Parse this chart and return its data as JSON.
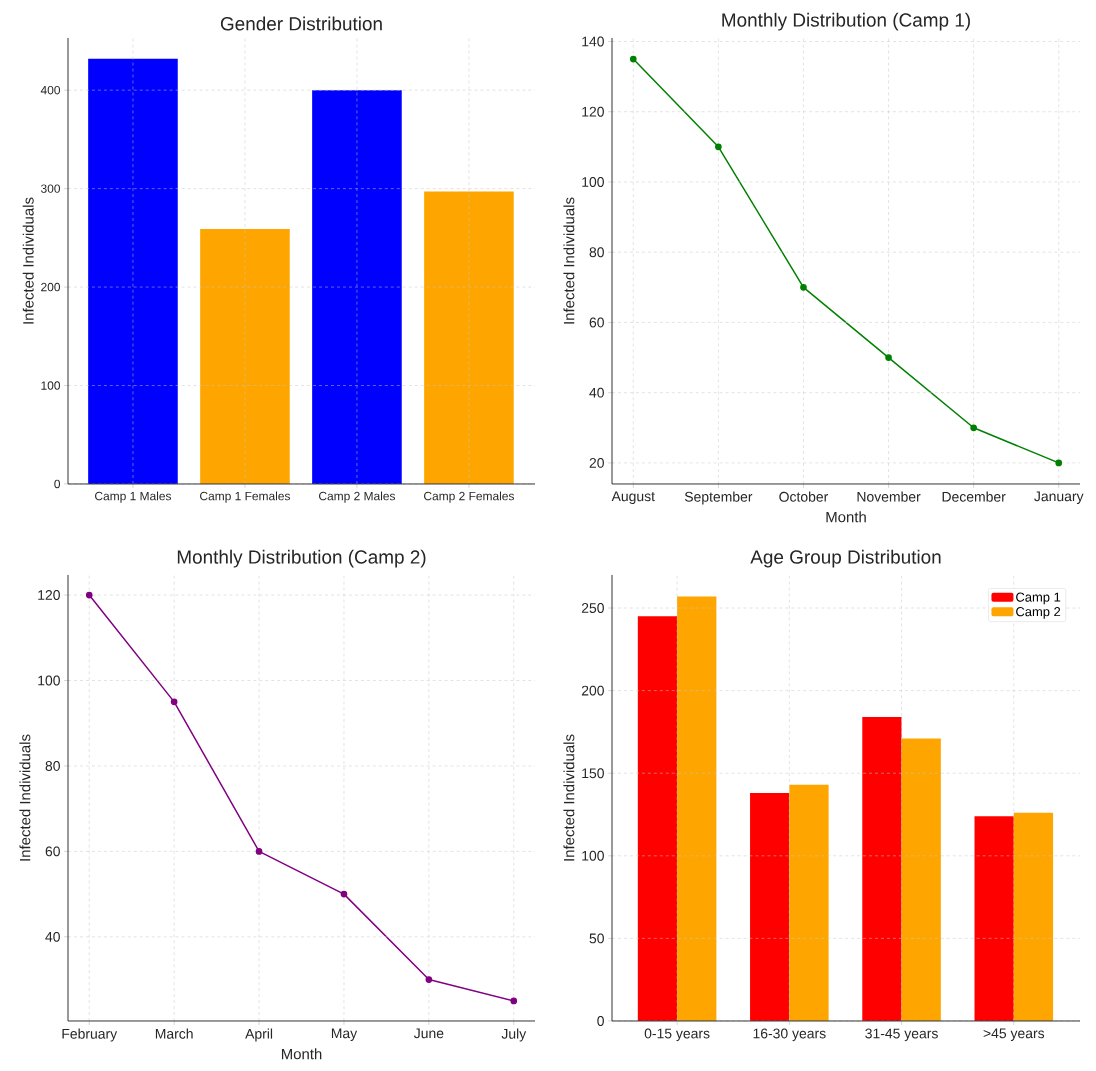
{
  "chart_data": [
    {
      "type": "bar",
      "title": "Gender Distribution",
      "ylabel": "Infected Individuals",
      "categories": [
        "Camp 1 Males",
        "Camp 1 Females",
        "Camp 2 Males",
        "Camp 2 Females"
      ],
      "values": [
        432,
        259,
        400,
        297
      ],
      "colors": [
        "#0000ff",
        "#ffa500",
        "#0000ff",
        "#ffa500"
      ],
      "ylim": [
        0,
        453
      ],
      "yticks": [
        0,
        100,
        200,
        300,
        400
      ],
      "grid": true
    },
    {
      "type": "line",
      "title": "Monthly Distribution (Camp 1)",
      "xlabel": "Month",
      "ylabel": "Infected Individuals",
      "categories": [
        "August",
        "September",
        "October",
        "November",
        "December",
        "January"
      ],
      "series": [
        {
          "color": "#008000",
          "values": [
            135,
            110,
            70,
            50,
            30,
            20
          ]
        }
      ],
      "ylim": [
        14,
        141
      ],
      "yticks": [
        20,
        40,
        60,
        80,
        100,
        120,
        140
      ],
      "grid": true,
      "marker": "circle"
    },
    {
      "type": "line",
      "title": "Monthly Distribution (Camp 2)",
      "xlabel": "Month",
      "ylabel": "Infected Individuals",
      "categories": [
        "February",
        "March",
        "April",
        "May",
        "June",
        "July"
      ],
      "series": [
        {
          "color": "#800080",
          "values": [
            120,
            95,
            60,
            50,
            30,
            25
          ]
        }
      ],
      "ylim": [
        20.3,
        124.7
      ],
      "yticks": [
        40,
        60,
        80,
        100,
        120
      ],
      "grid": true,
      "marker": "circle"
    },
    {
      "type": "bar",
      "title": "Age Group Distribution",
      "ylabel": "Infected Individuals",
      "categories": [
        "0-15 years",
        "16-30 years",
        "31-45 years",
        ">45 years"
      ],
      "series": [
        {
          "name": "Camp 1",
          "color": "#ff0000",
          "values": [
            245,
            138,
            184,
            124
          ]
        },
        {
          "name": "Camp 2",
          "color": "#ffa500",
          "values": [
            257,
            143,
            171,
            126
          ]
        }
      ],
      "ylim": [
        0,
        270
      ],
      "yticks": [
        0,
        50,
        100,
        150,
        200,
        250
      ],
      "grid": true,
      "legend": "top right"
    }
  ]
}
